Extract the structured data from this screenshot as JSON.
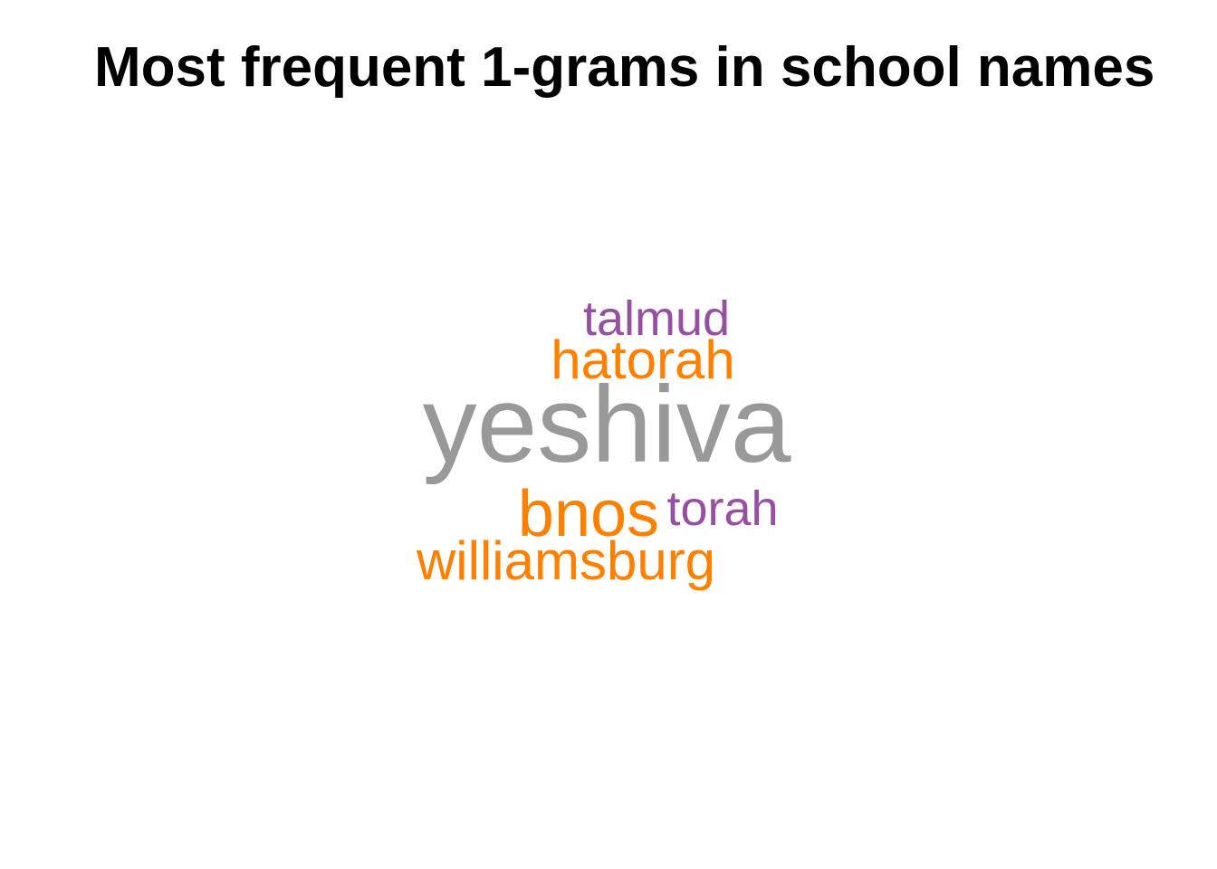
{
  "chart_data": {
    "type": "wordcloud",
    "title": "Most frequent 1-grams in school names",
    "palette": {
      "grey": "#999999",
      "orange": "#ff7f00",
      "purple": "#984ea3"
    },
    "words": [
      {
        "text": "yeshiva",
        "rank": 1,
        "color": "#999999"
      },
      {
        "text": "bnos",
        "rank": 2,
        "color": "#ff7f00"
      },
      {
        "text": "hatorah",
        "rank": 3,
        "color": "#ff7f00"
      },
      {
        "text": "williamsburg",
        "rank": 4,
        "color": "#ff7f00"
      },
      {
        "text": "talmud",
        "rank": 5,
        "color": "#984ea3"
      },
      {
        "text": "torah",
        "rank": 6,
        "color": "#984ea3"
      }
    ]
  }
}
